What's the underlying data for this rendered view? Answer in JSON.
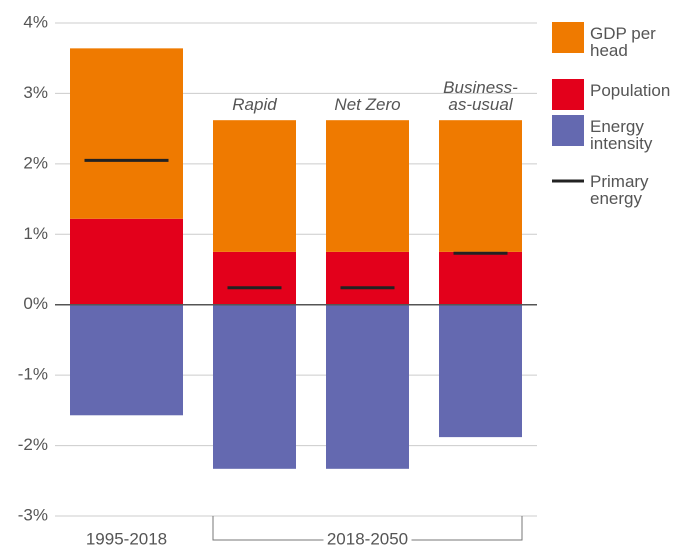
{
  "chart_data": {
    "type": "stacked_bar",
    "categories": [
      "1995-2018",
      "Rapid",
      "Net Zero",
      "Business-as-usual"
    ],
    "group_label": "2018-2050",
    "series": [
      {
        "name": "Population",
        "color": "#e3001b",
        "values": [
          1.22,
          0.75,
          0.75,
          0.75
        ]
      },
      {
        "name": "GDP per head",
        "color": "#ef7a00",
        "values": [
          2.42,
          1.87,
          1.87,
          1.87
        ]
      },
      {
        "name": "Energy intensity",
        "color": "#6469b0",
        "values": [
          -1.57,
          -2.33,
          -2.33,
          -1.88
        ]
      },
      {
        "name": "Primary energy",
        "color": "#222222",
        "type": "marker",
        "values": [
          2.05,
          0.24,
          0.24,
          0.73
        ]
      }
    ],
    "legend_order": [
      1,
      0,
      2,
      3
    ],
    "ylim": [
      -3,
      4
    ],
    "yticks": [
      {
        "value": -3,
        "label": "-3%"
      },
      {
        "value": -2,
        "label": "-2%"
      },
      {
        "value": -1,
        "label": "-1%"
      },
      {
        "value": 0,
        "label": "0%"
      },
      {
        "value": 1,
        "label": "1%"
      },
      {
        "value": 2,
        "label": "2%"
      },
      {
        "value": 3,
        "label": "3%"
      },
      {
        "value": 4,
        "label": "4%"
      }
    ],
    "grid": true,
    "legend": "right"
  }
}
